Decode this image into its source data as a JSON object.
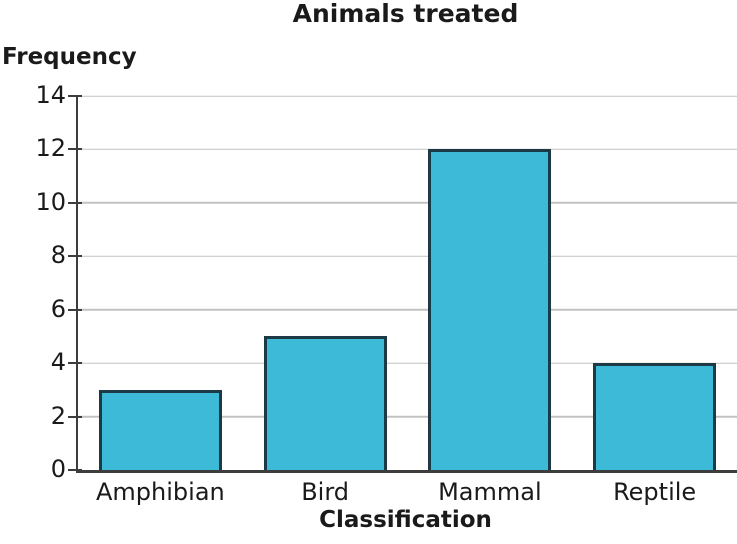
{
  "chart_data": {
    "type": "bar",
    "title": "Animals treated",
    "xlabel": "Classification",
    "ylabel": "Frequency",
    "categories": [
      "Amphibian",
      "Bird",
      "Mammal",
      "Reptile"
    ],
    "values": [
      3,
      5,
      12,
      4
    ],
    "ylim": [
      0,
      14
    ],
    "ytick_step": 2,
    "ytick_labels": [
      "0",
      "2",
      "4",
      "6",
      "8",
      "10",
      "12",
      "14"
    ],
    "grid": "horizontal",
    "legend": "none",
    "colors": {
      "bar_fill": "#3dbad8",
      "bar_border": "#1c3946",
      "gridline": "#c2c2c2",
      "axis": "#3d3d3d",
      "text": "#1a1a1a",
      "background": "#ffffff"
    }
  }
}
